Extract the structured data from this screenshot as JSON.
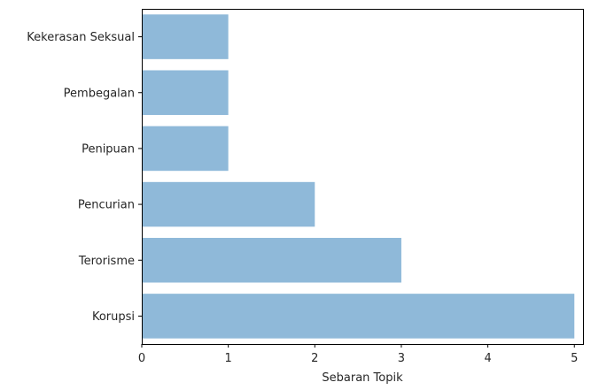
{
  "chart_data": {
    "type": "bar",
    "orientation": "horizontal",
    "categories": [
      "Korupsi",
      "Terorisme",
      "Pencurian",
      "Penipuan",
      "Pembegalan",
      "Kekerasan Seksual"
    ],
    "values": [
      5,
      3,
      2,
      1,
      1,
      1
    ],
    "xlabel": "Sebaran Topik",
    "ylabel": "",
    "xlim": [
      0,
      5.1
    ],
    "xticks": [
      0,
      1,
      2,
      3,
      4,
      5
    ],
    "grid": false,
    "bar_color": "#8fb9d9"
  }
}
